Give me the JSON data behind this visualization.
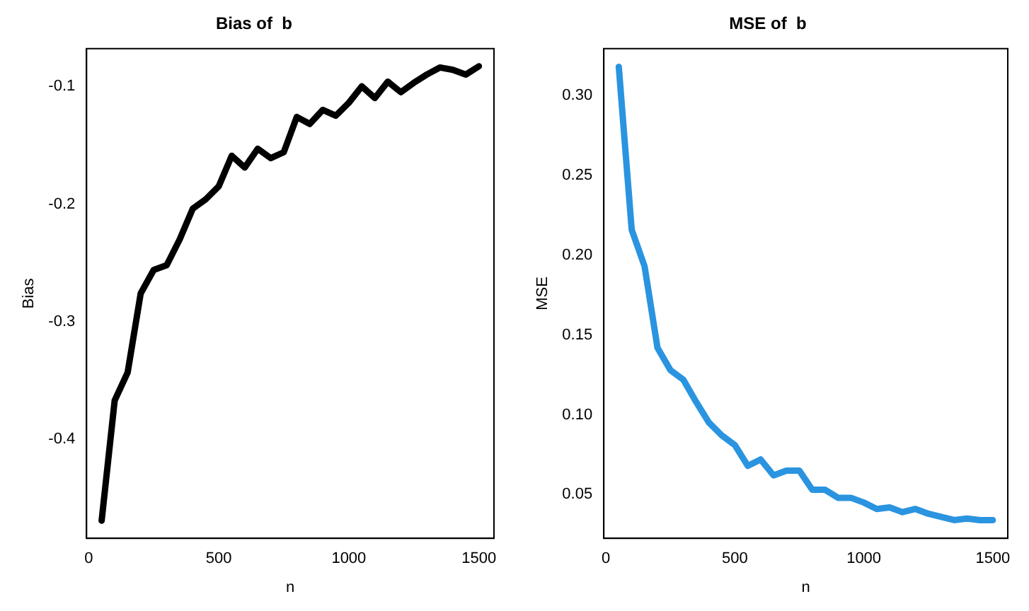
{
  "chart_data": [
    {
      "type": "line",
      "title": "Bias of  b",
      "xlabel": "n",
      "ylabel": "Bias",
      "x": [
        50,
        100,
        150,
        200,
        250,
        300,
        350,
        400,
        450,
        500,
        550,
        600,
        650,
        700,
        750,
        800,
        850,
        900,
        950,
        1000,
        1050,
        1100,
        1150,
        1200,
        1250,
        1300,
        1350,
        1400,
        1450,
        1500
      ],
      "series": [
        {
          "color": "#000000",
          "values": [
            -0.469,
            -0.367,
            -0.343,
            -0.276,
            -0.256,
            -0.252,
            -0.23,
            -0.204,
            -0.196,
            -0.185,
            -0.159,
            -0.169,
            -0.153,
            -0.161,
            -0.156,
            -0.126,
            -0.132,
            -0.12,
            -0.125,
            -0.114,
            -0.1,
            -0.11,
            -0.096,
            -0.105,
            -0.097,
            -0.09,
            -0.084,
            -0.086,
            -0.09,
            -0.083
          ]
        }
      ],
      "xlim": [
        -8,
        1558
      ],
      "xticks": [
        0,
        500,
        1000,
        1500
      ],
      "ylim": [
        -0.484,
        -0.068
      ],
      "yticks": [
        {
          "value": -0.4,
          "label": "-0.4"
        },
        {
          "value": -0.3,
          "label": "-0.3"
        },
        {
          "value": -0.2,
          "label": "-0.2"
        },
        {
          "value": -0.1,
          "label": "-0.1"
        }
      ],
      "grid": false,
      "legend": false,
      "line_style": "solid",
      "marker": "none"
    },
    {
      "type": "line",
      "title": "MSE of  b",
      "xlabel": "n",
      "ylabel": "MSE",
      "x": [
        50,
        100,
        150,
        200,
        250,
        300,
        350,
        400,
        450,
        500,
        550,
        600,
        650,
        700,
        750,
        800,
        850,
        900,
        950,
        1000,
        1050,
        1100,
        1150,
        1200,
        1250,
        1300,
        1350,
        1400,
        1450,
        1500
      ],
      "series": [
        {
          "color": "#2a94e0",
          "values": [
            0.318,
            0.216,
            0.193,
            0.142,
            0.128,
            0.122,
            0.108,
            0.095,
            0.087,
            0.081,
            0.068,
            0.072,
            0.062,
            0.065,
            0.065,
            0.053,
            0.053,
            0.048,
            0.048,
            0.045,
            0.041,
            0.042,
            0.039,
            0.041,
            0.038,
            0.036,
            0.034,
            0.035,
            0.034,
            0.034
          ]
        }
      ],
      "xlim": [
        -8,
        1558
      ],
      "xticks": [
        0,
        500,
        1000,
        1500
      ],
      "ylim": [
        0.0226,
        0.3294
      ],
      "yticks": [
        {
          "value": 0.05,
          "label": "0.05"
        },
        {
          "value": 0.1,
          "label": "0.10"
        },
        {
          "value": 0.15,
          "label": "0.15"
        },
        {
          "value": 0.2,
          "label": "0.20"
        },
        {
          "value": 0.25,
          "label": "0.25"
        },
        {
          "value": 0.3,
          "label": "0.30"
        }
      ],
      "grid": false,
      "legend": false,
      "line_style": "solid",
      "marker": "none"
    }
  ]
}
